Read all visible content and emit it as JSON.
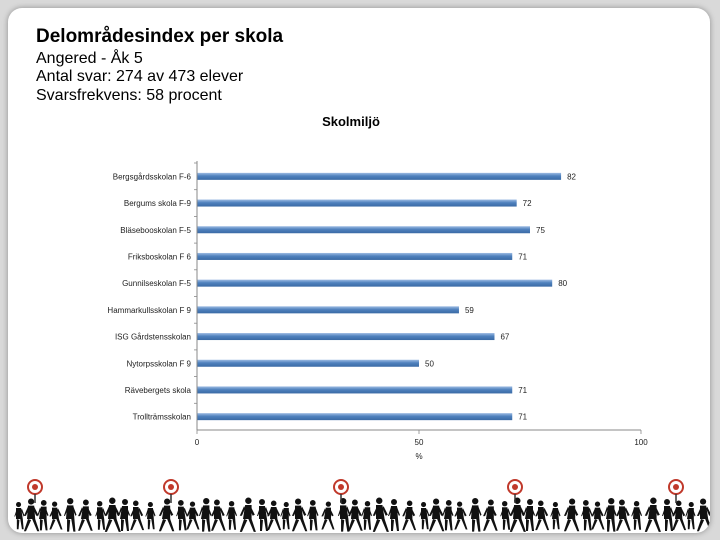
{
  "header": {
    "title": "Delområdesindex per skola",
    "line1": "Angered - Åk 5",
    "line2": "Antal svar: 274 av 473 elever",
    "line3": "Svarsfrekvens: 58 procent"
  },
  "chart_data": {
    "type": "bar",
    "orientation": "horizontal",
    "title": "Skolmiljö",
    "xlabel": "%",
    "ylabel": "",
    "xlim": [
      0,
      100
    ],
    "xticks": [
      0,
      50,
      100
    ],
    "grid": false,
    "bar_color": "#4f81bd",
    "categories": [
      "Bergsgårdsskolan F-6",
      "Bergums skola F-9",
      "Bläsebooskolan F-5",
      "Friksboskolan F 6",
      "Gunnilseskolan F-5",
      "Hammarkullsskolan F 9",
      "ISG Gårdstensskolan",
      "Nytorpsskolan F 9",
      "Rävebergets skola",
      "Trollträmsskolan"
    ],
    "values": [
      82,
      72,
      75,
      71,
      80,
      59,
      67,
      50,
      71,
      71
    ]
  },
  "footer": {
    "decoration": "silhouettes-of-walking-people",
    "target_icon_color": "#c0392b"
  }
}
